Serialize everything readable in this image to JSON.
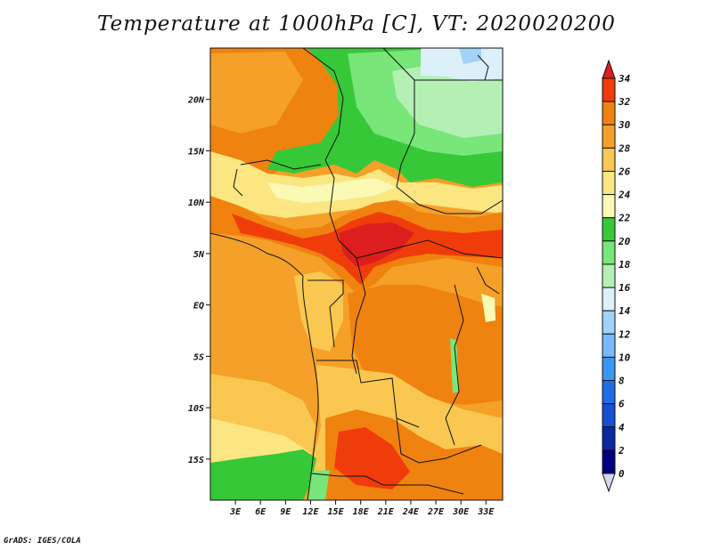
{
  "map": {
    "title": "Temperature at 1000hPa [C], VT: 2020020200",
    "credit": "GrADS: IGES/COLA",
    "lon_range": [
      0,
      35
    ],
    "lat_range": [
      -19,
      25
    ],
    "lat_ticks": [
      "20N",
      "15N",
      "10N",
      "5N",
      "EQ",
      "5S",
      "10S",
      "15S"
    ],
    "lat_tick_values": [
      20,
      15,
      10,
      5,
      0,
      -5,
      -10,
      -15
    ],
    "lon_ticks": [
      "3E",
      "6E",
      "9E",
      "12E",
      "15E",
      "18E",
      "21E",
      "24E",
      "27E",
      "30E",
      "33E"
    ],
    "lon_tick_values": [
      3,
      6,
      9,
      12,
      15,
      18,
      21,
      24,
      27,
      30,
      33
    ]
  },
  "colorbar": {
    "labels": [
      "34",
      "32",
      "30",
      "28",
      "26",
      "24",
      "22",
      "20",
      "18",
      "16",
      "14",
      "12",
      "10",
      "8",
      "6",
      "4",
      "2",
      "0"
    ],
    "colors": [
      "#dc1e1e",
      "#f03c0a",
      "#f0820f",
      "#f5a028",
      "#fac850",
      "#fbe682",
      "#fafab4",
      "#37c837",
      "#78e678",
      "#b4f0b4",
      "#dcf0fa",
      "#a0d2fa",
      "#78b9fa",
      "#3c96f5",
      "#1e6ee6",
      "#1450d2",
      "#0a28a0",
      "#000082",
      "#d6d6ee"
    ]
  }
}
